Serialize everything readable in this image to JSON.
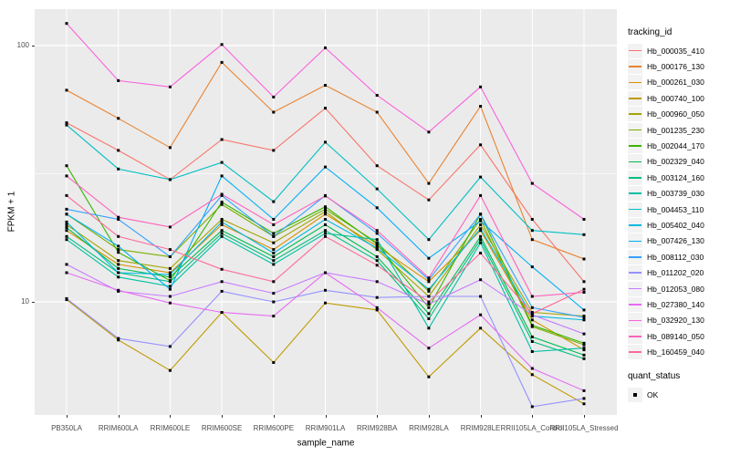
{
  "window": {
    "background": "#FFFFFF"
  },
  "axes": {
    "y_title": "FPKM + 1",
    "x_title": "sample_name",
    "y_ticks": [
      {
        "label": "100",
        "value": 100
      },
      {
        "label": "10",
        "value": 10
      }
    ]
  },
  "legend": {
    "tracking_title": "tracking_id",
    "quant_title": "quant_status",
    "quant_items": [
      {
        "label": "OK",
        "shape": "filled-square",
        "color": "#000000"
      }
    ]
  },
  "style": {
    "panel_bg": "#EBEBEB",
    "grid_color": "#FFFFFF",
    "tick_label_color": "#4D4D4D",
    "point_color": "#000000"
  },
  "chart_data": {
    "type": "line",
    "title": "",
    "xlabel": "sample_name",
    "ylabel": "FPKM + 1",
    "y_scale": "log10",
    "ylim": [
      3.6,
      140
    ],
    "grid": "on",
    "legend_position": "right",
    "point_shape": "filled-square",
    "categories": [
      "PB350LA",
      "RRIM600LA",
      "RRIM600LE",
      "RRIM600SE",
      "RRIM600PE",
      "RRIM901LA",
      "RRIM928BA",
      "RRIM928LA",
      "RRIM928LE",
      "RRII105LA_Control",
      "RRII105LA_Stressed"
    ],
    "minor_gridline_values": [
      31.6
    ],
    "series": [
      {
        "name": "Hb_000035_410",
        "color": "#F8766D",
        "values": [
          50,
          39,
          30,
          43,
          39,
          57,
          34,
          25,
          41,
          21,
          12
        ]
      },
      {
        "name": "Hb_000176_130",
        "color": "#EA8331",
        "values": [
          67,
          52,
          40,
          86,
          55,
          70,
          55,
          29,
          58,
          17.5,
          14.7
        ]
      },
      {
        "name": "Hb_000261_030",
        "color": "#D89000",
        "values": [
          19,
          14,
          13,
          20,
          16,
          22,
          16.5,
          12,
          19,
          8.5,
          6.5
        ]
      },
      {
        "name": "Hb_000740_100",
        "color": "#C09B00",
        "values": [
          10.2,
          7.1,
          5.4,
          9.1,
          5.8,
          9.9,
          9.3,
          5.1,
          7.9,
          5.2,
          4.0
        ]
      },
      {
        "name": "Hb_000960_050",
        "color": "#A3A500",
        "values": [
          20,
          14.5,
          13.5,
          21,
          17,
          22.5,
          16,
          10.5,
          20,
          9.1,
          8.8
        ]
      },
      {
        "name": "Hb_001235_230",
        "color": "#7CAE00",
        "values": [
          22,
          16,
          15,
          24,
          18,
          23,
          17,
          11,
          21,
          8.0,
          6.8
        ]
      },
      {
        "name": "Hb_002044_170",
        "color": "#39B600",
        "values": [
          34,
          15.6,
          12.1,
          24.5,
          18.5,
          23.5,
          16.8,
          9.5,
          22,
          8.1,
          6.9
        ]
      },
      {
        "name": "Hb_002329_040",
        "color": "#00BB4E",
        "values": [
          19.5,
          13.5,
          12.5,
          19,
          15,
          20,
          15,
          9.0,
          18,
          7.3,
          6.2
        ]
      },
      {
        "name": "Hb_003124_160",
        "color": "#00BF7D",
        "values": [
          18,
          13,
          12,
          18.5,
          14.5,
          19,
          14.5,
          8.6,
          17.5,
          7.0,
          6.0
        ]
      },
      {
        "name": "Hb_003739_030",
        "color": "#00C1A3",
        "values": [
          17.5,
          12.5,
          11.5,
          18,
          14,
          18.5,
          17.5,
          7.9,
          17,
          6.4,
          6.6
        ]
      },
      {
        "name": "Hb_004453_110",
        "color": "#00BFC4",
        "values": [
          49,
          33,
          30,
          35,
          24.6,
          42,
          27.6,
          17.5,
          30.7,
          19,
          18.3
        ]
      },
      {
        "name": "Hb_005402_040",
        "color": "#00BAE0",
        "values": [
          20.5,
          13,
          12.8,
          20.5,
          15.5,
          21,
          16.2,
          11.2,
          19.3,
          8.8,
          8.5
        ]
      },
      {
        "name": "Hb_007426_130",
        "color": "#00B0F6",
        "values": [
          22,
          16.5,
          11.2,
          31,
          21,
          33.6,
          23.3,
          14.8,
          20.7,
          13.7,
          9.3
        ]
      },
      {
        "name": "Hb_008112_030",
        "color": "#35A2FF",
        "values": [
          23,
          21,
          15,
          26,
          18,
          26,
          18.5,
          12.2,
          22,
          9.5,
          8.7
        ]
      },
      {
        "name": "Hb_011202_020",
        "color": "#9590FF",
        "values": [
          10.3,
          7.2,
          6.7,
          11,
          10,
          11.1,
          10.4,
          10.5,
          10.5,
          3.9,
          4.2
        ]
      },
      {
        "name": "Hb_012053_080",
        "color": "#C77CFF",
        "values": [
          14,
          11,
          10.5,
          12,
          10.8,
          13,
          12,
          9.8,
          12.2,
          8.9,
          7.5
        ]
      },
      {
        "name": "Hb_027380_140",
        "color": "#E76BF3",
        "values": [
          13,
          11.1,
          9.9,
          9.1,
          8.8,
          13,
          9.5,
          6.6,
          8.9,
          5.5,
          4.5
        ]
      },
      {
        "name": "Hb_032920_130",
        "color": "#FA62DB",
        "values": [
          122,
          73,
          69,
          101,
          63,
          98,
          64,
          46,
          69,
          29,
          21
        ]
      },
      {
        "name": "Hb_089140_050",
        "color": "#FF62BC",
        "values": [
          31,
          21.4,
          19.6,
          26.3,
          20,
          25.9,
          19,
          12.4,
          26,
          10.5,
          10.9
        ]
      },
      {
        "name": "Hb_160459_040",
        "color": "#FF6A98",
        "values": [
          26,
          18,
          16,
          13.4,
          12,
          18,
          13.9,
          10,
          15.5,
          9.0,
          11.2
        ]
      }
    ]
  }
}
